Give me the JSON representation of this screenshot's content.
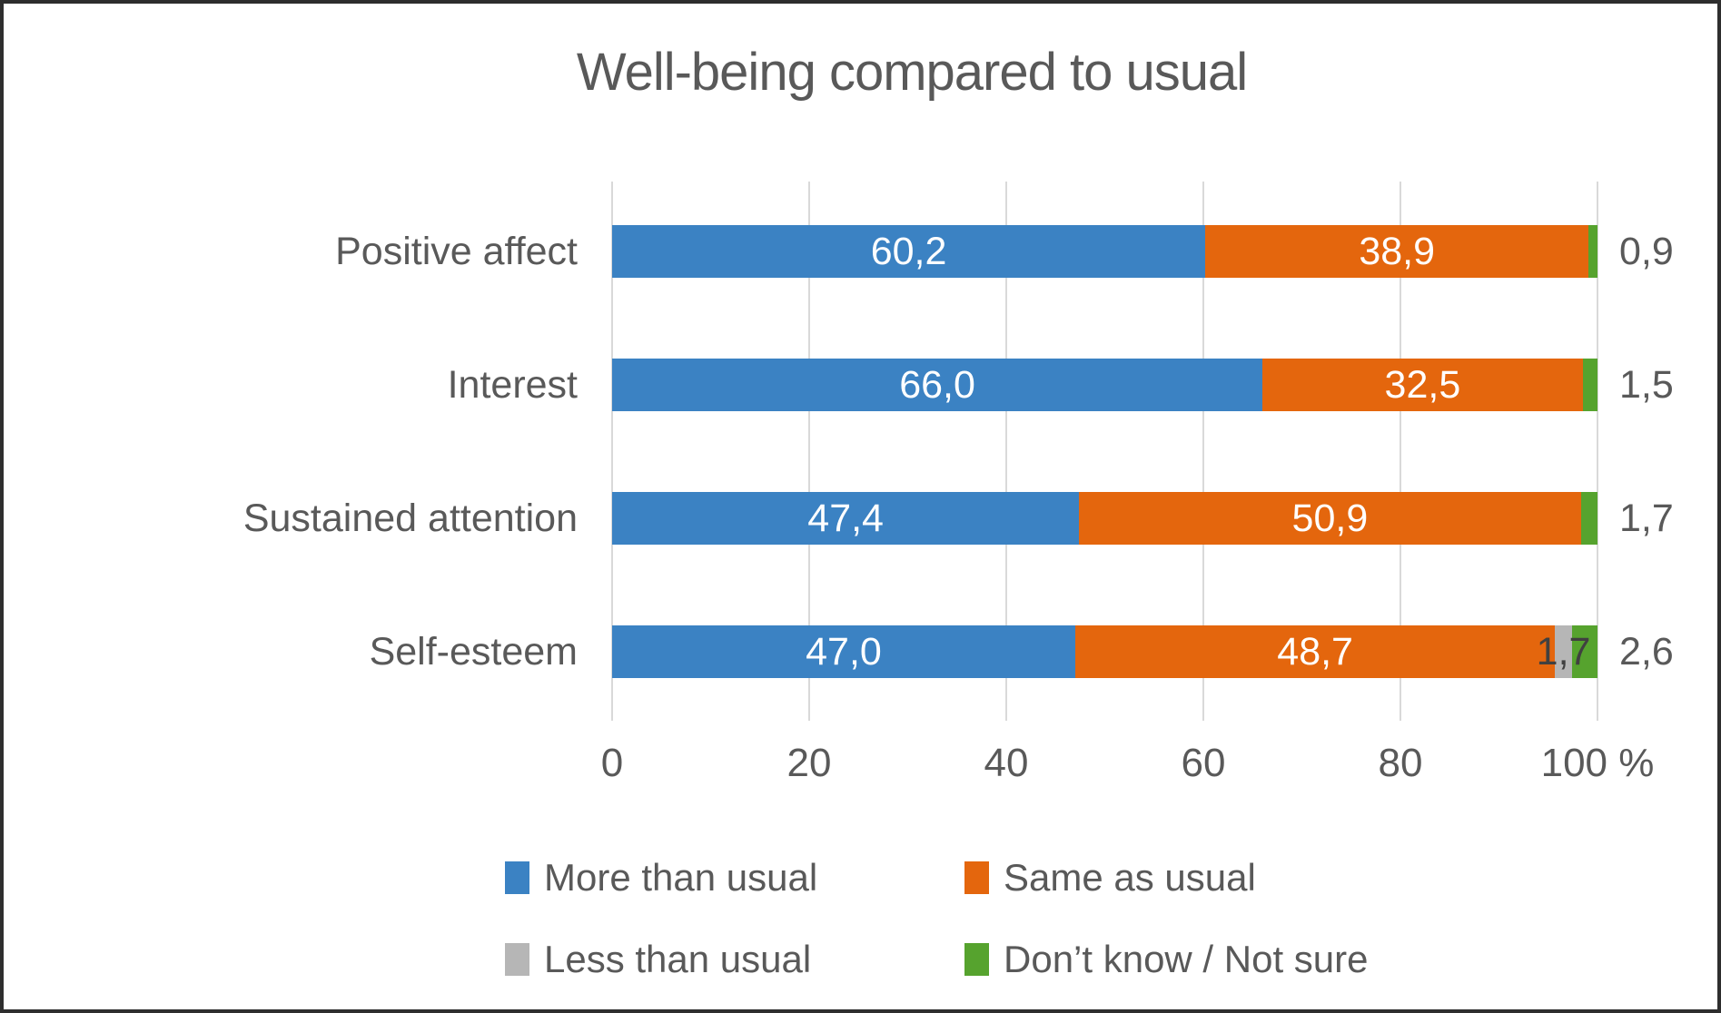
{
  "title": "Well-being compared to usual",
  "colors": {
    "blue": "#3b82c3",
    "orange": "#e4660d",
    "gray": "#b6b6b6",
    "green": "#56a32e",
    "gridline": "#d9d9d9",
    "text": "#595959",
    "dark_label": "#404040"
  },
  "chart_data": {
    "type": "bar",
    "orientation": "horizontal-stacked",
    "title": "Well-being compared to usual",
    "categories": [
      "Positive affect",
      "Interest",
      "Sustained attention",
      "Self-esteem"
    ],
    "series": [
      {
        "name": "More than usual",
        "color": "#3b82c3",
        "values": [
          60.2,
          66.0,
          47.4,
          47.0
        ],
        "labels": [
          "60,2",
          "66,0",
          "47,4",
          "47,0"
        ],
        "label_style": "inside-white"
      },
      {
        "name": "Same as usual",
        "color": "#e4660d",
        "values": [
          38.9,
          32.5,
          50.9,
          48.7
        ],
        "labels": [
          "38,9",
          "32,5",
          "50,9",
          "48,7"
        ],
        "label_style": "inside-white"
      },
      {
        "name": "Less than usual",
        "color": "#b6b6b6",
        "values": [
          0,
          0,
          0,
          1.7
        ],
        "labels": [
          "",
          "",
          "",
          "1,7"
        ],
        "label_style": "inside-dark"
      },
      {
        "name": "Don’t know / Not sure",
        "color": "#56a32e",
        "values": [
          0.9,
          1.5,
          1.7,
          2.6
        ],
        "labels": [
          "",
          "",
          "",
          ""
        ],
        "label_style": "outside"
      }
    ],
    "outside_labels": [
      "0,9",
      "1,5",
      "1,7",
      "2,6"
    ],
    "x_ticks": [
      "0",
      "20",
      "40",
      "60",
      "80",
      "100 %"
    ],
    "x_tick_values": [
      0,
      20,
      40,
      60,
      80,
      100
    ],
    "xlim": [
      0,
      100
    ],
    "grid": true,
    "legend_position": "bottom"
  }
}
